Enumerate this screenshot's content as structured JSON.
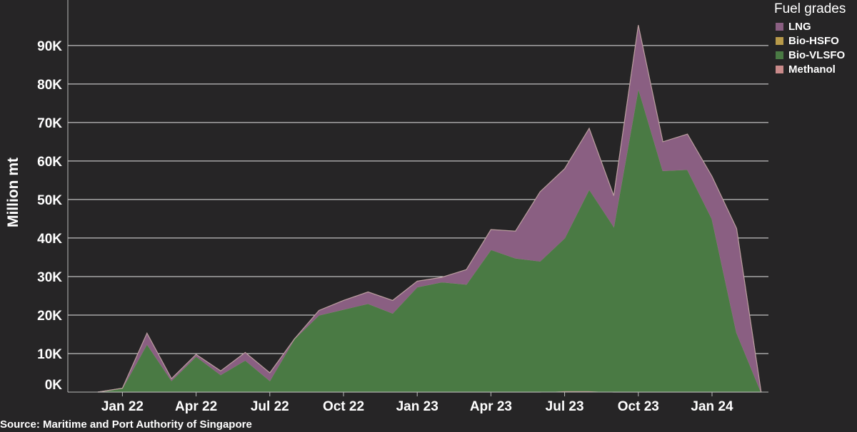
{
  "chart_data": {
    "type": "area",
    "stacked": true,
    "ylabel": "Million mt",
    "xlabel": "",
    "ylim": [
      0,
      97000
    ],
    "y_ticks": [
      {
        "value": 0,
        "label": "0K"
      },
      {
        "value": 10000,
        "label": "10K"
      },
      {
        "value": 20000,
        "label": "20K"
      },
      {
        "value": 30000,
        "label": "30K"
      },
      {
        "value": 40000,
        "label": "40K"
      },
      {
        "value": 50000,
        "label": "50K"
      },
      {
        "value": 60000,
        "label": "60K"
      },
      {
        "value": 70000,
        "label": "70K"
      },
      {
        "value": 80000,
        "label": "80K"
      },
      {
        "value": 90000,
        "label": "90K"
      }
    ],
    "x": [
      "2021-11",
      "2021-12",
      "2022-01",
      "2022-02",
      "2022-03",
      "2022-04",
      "2022-05",
      "2022-06",
      "2022-07",
      "2022-08",
      "2022-09",
      "2022-10",
      "2022-11",
      "2022-12",
      "2023-01",
      "2023-02",
      "2023-03",
      "2023-04",
      "2023-05",
      "2023-06",
      "2023-07",
      "2023-08",
      "2023-09",
      "2023-10",
      "2023-11",
      "2023-12",
      "2024-01",
      "2024-02"
    ],
    "x_ticks": [
      {
        "index": 1,
        "label": "Jan 22"
      },
      {
        "index": 4,
        "label": "Apr 22"
      },
      {
        "index": 7,
        "label": "Jul 22"
      },
      {
        "index": 10,
        "label": "Oct 22"
      },
      {
        "index": 13,
        "label": "Jan 23"
      },
      {
        "index": 16,
        "label": "Apr 23"
      },
      {
        "index": 19,
        "label": "Jul 23"
      },
      {
        "index": 22,
        "label": "Oct 23"
      },
      {
        "index": 25,
        "label": "Jan 24"
      }
    ],
    "series": [
      {
        "name": "Methanol",
        "color": "#c98a8a",
        "values": [
          0,
          0,
          0,
          0,
          0,
          0,
          0,
          0,
          0,
          0,
          0,
          0,
          0,
          0,
          0,
          0,
          0,
          0,
          0,
          300,
          300,
          0,
          0,
          0,
          0,
          0,
          0,
          0
        ]
      },
      {
        "name": "Bio-VLSFO",
        "color": "#4a7a44",
        "values": [
          0,
          1000,
          12500,
          3000,
          9300,
          4500,
          8300,
          3000,
          13800,
          20000,
          21500,
          23000,
          20500,
          27300,
          28600,
          28000,
          37000,
          34800,
          34000,
          39700,
          52400,
          43000,
          79000,
          57500,
          57800,
          45000,
          15500,
          0
        ]
      },
      {
        "name": "Bio-HSFO",
        "color": "#b89a4a",
        "values": [
          0,
          0,
          0,
          0,
          0,
          0,
          0,
          0,
          0,
          0,
          0,
          0,
          0,
          0,
          0,
          0,
          0,
          0,
          0,
          0,
          0,
          0,
          0,
          0,
          0,
          0,
          0,
          0
        ]
      },
      {
        "name": "LNG",
        "color": "#8a5f82",
        "values": [
          0,
          0,
          2800,
          500,
          500,
          1000,
          2000,
          2000,
          0,
          1200,
          2300,
          3000,
          3300,
          1500,
          1200,
          3800,
          5200,
          7000,
          18000,
          18000,
          15800,
          8000,
          16300,
          7500,
          9200,
          11000,
          27000,
          0
        ]
      }
    ],
    "legend": {
      "title": "Fuel grades",
      "placement": "top-right",
      "entries": [
        {
          "label": "LNG",
          "color": "#8a5f82"
        },
        {
          "label": "Bio-HSFO",
          "color": "#b89a4a"
        },
        {
          "label": "Bio-VLSFO",
          "color": "#4a7a44"
        },
        {
          "label": "Methanol",
          "color": "#c98a8a"
        }
      ]
    },
    "grid": true
  },
  "source": "Source: Maritime and Port Authority of Singapore"
}
